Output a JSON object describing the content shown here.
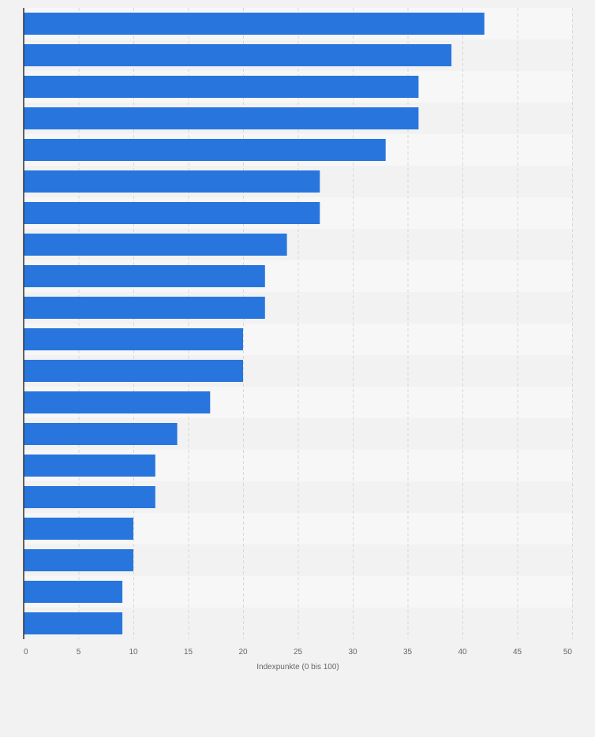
{
  "chart_data": {
    "type": "bar",
    "orientation": "horizontal",
    "categories": [
      "",
      "",
      "",
      "",
      "",
      "",
      "",
      "",
      "",
      "",
      "",
      "",
      "",
      "",
      "",
      "",
      "",
      "",
      "",
      ""
    ],
    "values": [
      42,
      39,
      36,
      36,
      33,
      27,
      27,
      24,
      22,
      22,
      20,
      20,
      17,
      14,
      12,
      12,
      10,
      10,
      9,
      9
    ],
    "xlim": [
      0,
      50
    ],
    "x_ticks": [
      "0",
      "5",
      "10",
      "15",
      "20",
      "25",
      "30",
      "35",
      "40",
      "45",
      "50"
    ],
    "xlabel": "Indexpunkte (0 bis 100)",
    "ylabel": "",
    "title": "",
    "grid": true,
    "colors": {
      "bar": "#2876dd",
      "background": "#f2f2f2",
      "band_light": "#f7f7f7",
      "band_dark": "#f2f2f2",
      "grid": "#d8d8d8",
      "axis": "#333333",
      "tick_text": "#666666"
    }
  }
}
